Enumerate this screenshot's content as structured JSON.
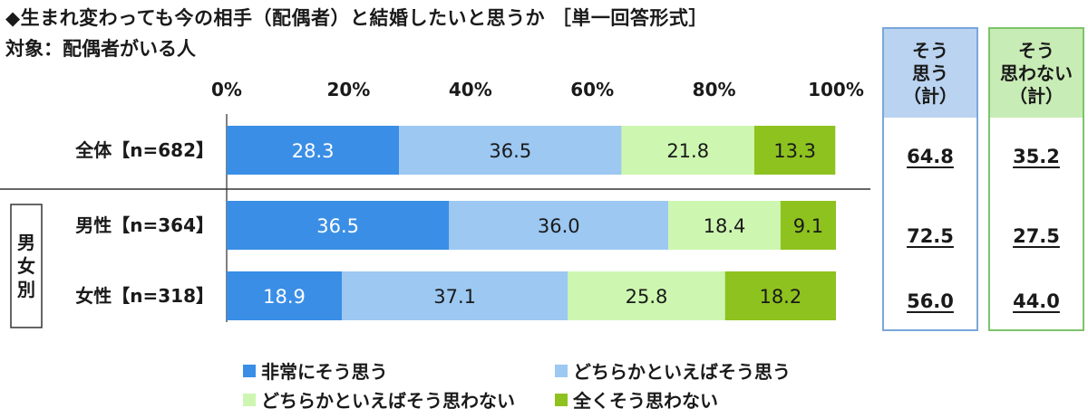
{
  "title": "◆生まれ変わっても今の相手（配偶者）と結婚したいと思うか ［単一回答形式］",
  "subtitle": "対象：配偶者がいる人",
  "colors": {
    "very_agree": "#3a8ee6",
    "somewhat_agree": "#9cc8f2",
    "somewhat_disagree": "#cdf7b0",
    "strongly_disagree": "#8ec21f"
  },
  "group_label": "男女別",
  "summary": {
    "agree_header": [
      "そう",
      "思う",
      "（計）"
    ],
    "disagree_header": [
      "そう",
      "思わない",
      "（計）"
    ],
    "agree_values": [
      "64.8",
      "72.5",
      "56.0"
    ],
    "disagree_values": [
      "35.2",
      "27.5",
      "44.0"
    ]
  },
  "chart_data": {
    "type": "bar",
    "stacked": true,
    "orientation": "horizontal",
    "categories": [
      "全体【n=682】",
      "男性【n=364】",
      "女性【n=318】"
    ],
    "xlim": [
      0,
      100
    ],
    "x_tick_labels": [
      "0%",
      "20%",
      "40%",
      "60%",
      "80%",
      "100%"
    ],
    "series": [
      {
        "name": "非常にそう思う",
        "values": [
          28.3,
          36.5,
          18.9
        ]
      },
      {
        "name": "どちらかといえばそう思う",
        "values": [
          36.5,
          36.0,
          37.1
        ]
      },
      {
        "name": "どちらかといえばそう思わない",
        "values": [
          21.8,
          18.4,
          25.8
        ]
      },
      {
        "name": "全くそう思わない",
        "values": [
          13.3,
          9.1,
          18.2
        ]
      }
    ],
    "legend_position": "bottom"
  }
}
